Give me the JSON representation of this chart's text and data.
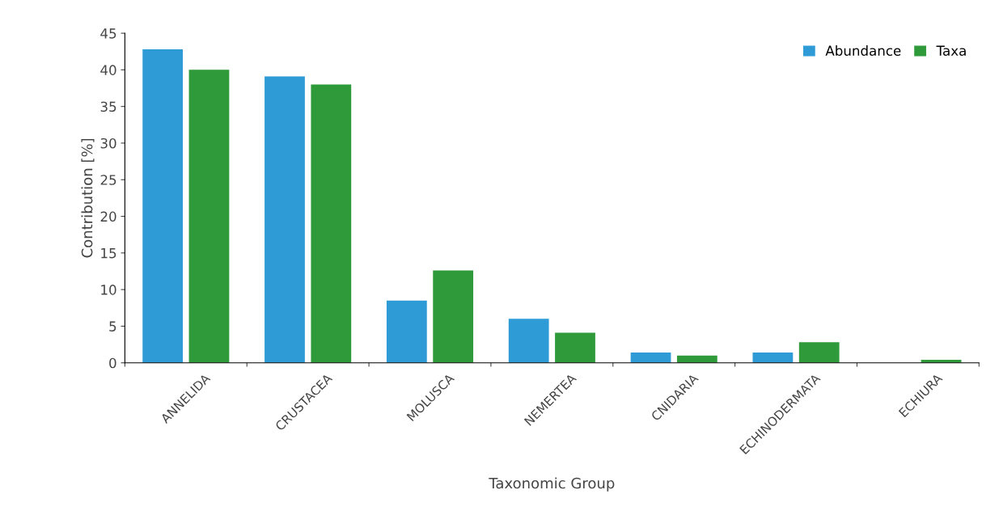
{
  "chart_data": {
    "type": "bar",
    "xlabel": "Taxonomic Group",
    "ylabel": "Contribution [%]",
    "categories": [
      "ANNELIDA",
      "CRUSTACEA",
      "MOLUSCA",
      "NEMERTEA",
      "CNIDARIA",
      "ECHINODERMATA",
      "ECHIURA"
    ],
    "series": [
      {
        "name": "Abundance",
        "color": "#2e9bd6",
        "values": [
          42.8,
          39.1,
          8.5,
          6.0,
          1.4,
          1.4,
          0
        ]
      },
      {
        "name": "Taxa",
        "color": "#2f9a3a",
        "values": [
          40.0,
          38.0,
          12.6,
          4.1,
          1.0,
          2.8,
          0.4
        ]
      }
    ],
    "ylim": [
      0,
      45
    ],
    "yticks": [
      0,
      5,
      10,
      15,
      20,
      25,
      30,
      35,
      40,
      45
    ],
    "grid": false,
    "legend": "top right"
  }
}
